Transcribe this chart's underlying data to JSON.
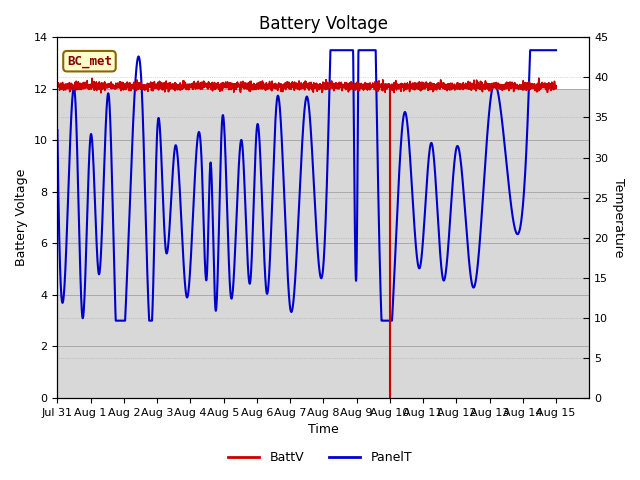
{
  "title": "Battery Voltage",
  "xlabel": "Time",
  "ylabel_left": "Battery Voltage",
  "ylabel_right": "Temperature",
  "ylim_left": [
    0,
    14
  ],
  "ylim_right": [
    0,
    45
  ],
  "yticks_left": [
    0,
    2,
    4,
    6,
    8,
    10,
    12,
    14
  ],
  "yticks_right": [
    0,
    5,
    10,
    15,
    20,
    25,
    30,
    35,
    40,
    45
  ],
  "xtick_labels": [
    "Jul 31",
    "Aug 1",
    "Aug 2",
    "Aug 3",
    "Aug 4",
    "Aug 5",
    "Aug 6",
    "Aug 7",
    "Aug 8",
    "Aug 9",
    "Aug 10",
    "Aug 11",
    "Aug 12",
    "Aug 13",
    "Aug 14",
    "Aug 15"
  ],
  "batt_voltage": 12.1,
  "drop_day": 10,
  "batt_color": "#cc0000",
  "panel_color": "#0000cc",
  "bg_gray": "#d8d8d8",
  "bg_white": "#ffffff",
  "grid_color": "#aaaaaa",
  "annotation_text": "BC_met",
  "annotation_bg": "#ffffcc",
  "annotation_border": "#886600",
  "legend_items": [
    "BattV",
    "PanelT"
  ],
  "title_fontsize": 12,
  "label_fontsize": 9,
  "tick_fontsize": 8,
  "panel_peaks": [
    10.4,
    11.3,
    10.2,
    11.7,
    11.6,
    10.3,
    9.8,
    8.8,
    9.1,
    10.7,
    9.95,
    10.5,
    11.55,
    11.7,
    12.9,
    12.8,
    11.1,
    9.9,
    9.7,
    11.8,
    12.8
  ],
  "panel_troughs": [
    5.3,
    3.15,
    4.8,
    3.15,
    3.1,
    5.85,
    3.9,
    4.85,
    3.5,
    4.15,
    4.5,
    4.05,
    3.5,
    5.15,
    5.2,
    5.1,
    5.05,
    4.6,
    4.3,
    6.5
  ],
  "panel_peak_times": [
    0.0,
    0.55,
    1.0,
    1.55,
    2.55,
    3.0,
    3.55,
    4.35,
    4.6,
    4.95,
    5.55,
    6.0,
    6.6,
    7.5,
    8.9,
    9.05,
    10.45,
    11.25,
    12.0,
    13.05,
    14.2
  ],
  "panel_trough_times": [
    0.25,
    0.75,
    1.25,
    1.75,
    2.85,
    3.25,
    3.9,
    4.5,
    4.75,
    5.2,
    5.8,
    6.3,
    7.0,
    8.0,
    9.0,
    9.7,
    10.9,
    11.6,
    12.5,
    13.9
  ]
}
